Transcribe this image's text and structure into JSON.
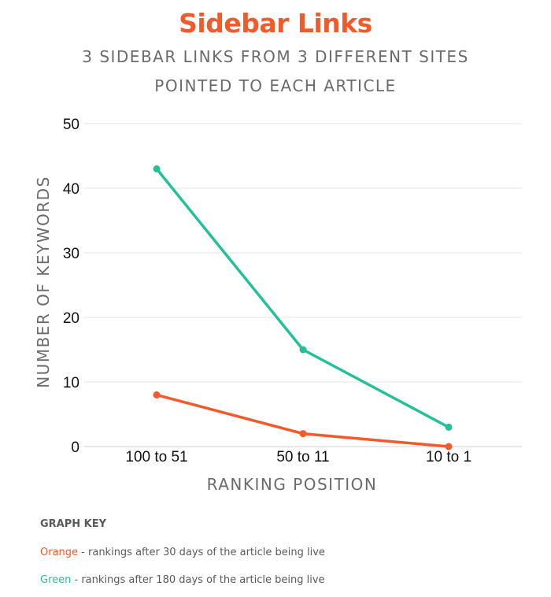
{
  "title": "Sidebar Links",
  "subtitle_line1": "3 SIDEBAR LINKS FROM 3 DIFFERENT SITES",
  "subtitle_line2": "POINTED TO EACH ARTICLE",
  "graph_key": {
    "heading": "GRAPH KEY",
    "items": [
      {
        "color_word": "Orange",
        "description": " - rankings after 30 days of the article being live",
        "color": "#f15a2b"
      },
      {
        "color_word": "Green",
        "description": " - rankings after 180 days of the article being live",
        "color": "#25c097"
      }
    ]
  },
  "chart_data": {
    "type": "line",
    "title": "Sidebar Links",
    "subtitle": "3 SIDEBAR LINKS FROM 3 DIFFERENT SITES POINTED TO EACH ARTICLE",
    "xlabel": "RANKING POSITION",
    "ylabel": "NUMBER OF KEYWORDS",
    "categories": [
      "100 to 51",
      "50 to 11",
      "10 to 1"
    ],
    "ylim": [
      0,
      50
    ],
    "yticks": [
      0,
      10,
      20,
      30,
      40,
      50
    ],
    "grid": true,
    "legend": "below chart",
    "series": [
      {
        "name": "Green",
        "color": "#25c097",
        "values": [
          43,
          15,
          3
        ]
      },
      {
        "name": "Orange",
        "color": "#f15a2b",
        "values": [
          8,
          2,
          0
        ]
      }
    ]
  }
}
